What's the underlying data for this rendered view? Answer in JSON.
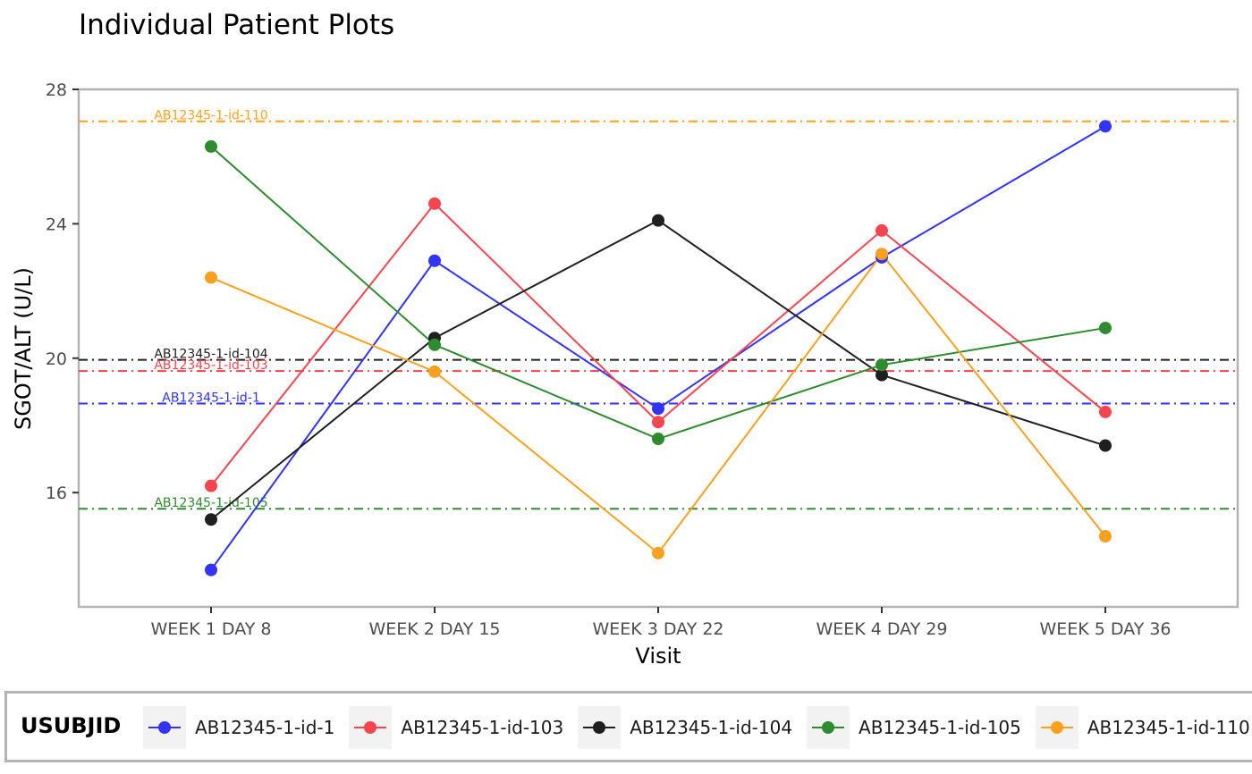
{
  "chart_data": {
    "type": "line",
    "title": "Individual Patient Plots",
    "xlabel": "Visit",
    "ylabel": "SGOT/ALT (U/L)",
    "categories": [
      "WEEK 1 DAY 8",
      "WEEK 2 DAY 15",
      "WEEK 3 DAY 22",
      "WEEK 4 DAY 29",
      "WEEK 5 DAY 36"
    ],
    "ylim": [
      12.6,
      28.0
    ],
    "yticks": [
      16,
      20,
      24,
      28
    ],
    "legend_title": "USUBJID",
    "legend_position": "bottom",
    "series": [
      {
        "name": "AB12345-1-id-1",
        "color": "#3333f5",
        "values": [
          13.7,
          22.9,
          18.5,
          23.0,
          26.9
        ]
      },
      {
        "name": "AB12345-1-id-103",
        "color": "#f5454f",
        "values": [
          16.2,
          24.6,
          18.1,
          23.8,
          18.4
        ]
      },
      {
        "name": "AB12345-1-id-104",
        "color": "#1f1f1f",
        "values": [
          15.2,
          20.6,
          24.1,
          19.5,
          17.4
        ]
      },
      {
        "name": "AB12345-1-id-105",
        "color": "#2e8b2e",
        "values": [
          26.3,
          20.4,
          17.6,
          19.8,
          20.9
        ]
      },
      {
        "name": "AB12345-1-id-110",
        "color": "#f7a11f",
        "values": [
          22.4,
          19.6,
          14.2,
          23.1,
          14.7
        ]
      }
    ],
    "reference_lines": [
      {
        "label": "AB12345-1-id-110",
        "color": "#f7a11f",
        "value": 27.05
      },
      {
        "label": "AB12345-1-id-104",
        "color": "#1f1f1f",
        "value": 19.95
      },
      {
        "label": "AB12345-1-id-103",
        "color": "#f5454f",
        "value": 19.62
      },
      {
        "label": "AB12345-1-id-1",
        "color": "#3333f5",
        "value": 18.65
      },
      {
        "label": "AB12345-1-id-105",
        "color": "#2e8b2e",
        "value": 15.52
      }
    ]
  }
}
